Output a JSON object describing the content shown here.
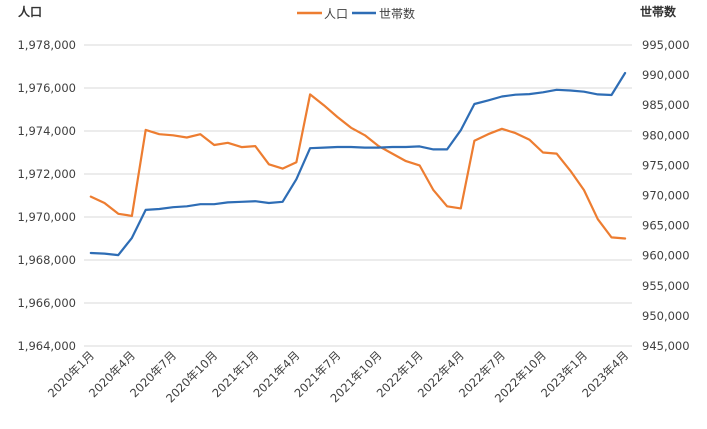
{
  "chart_data": {
    "type": "line",
    "xlabel": "",
    "y_left_label": "人口",
    "y_right_label": "世帯数",
    "x_tick_labels": [
      "2020年1月",
      "2020年4月",
      "2020年7月",
      "2020年10月",
      "2021年1月",
      "2021年4月",
      "2021年7月",
      "2021年10月",
      "2022年1月",
      "2022年4月",
      "2022年7月",
      "2022年10月",
      "2023年1月",
      "2023年4月"
    ],
    "y_left": {
      "min": 1964000,
      "max": 1978000,
      "step": 2000,
      "ticks": [
        "1,964,000",
        "1,966,000",
        "1,968,000",
        "1,970,000",
        "1,972,000",
        "1,974,000",
        "1,976,000",
        "1,978,000"
      ]
    },
    "y_right": {
      "min": 945000,
      "max": 995000,
      "step": 5000,
      "ticks": [
        "945,000",
        "950,000",
        "955,000",
        "960,000",
        "965,000",
        "970,000",
        "975,000",
        "980,000",
        "985,000",
        "990,000",
        "995,000"
      ]
    },
    "grid": true,
    "legend_position": "top",
    "series": [
      {
        "name": "人口",
        "axis": "left",
        "color": "#ed7d31",
        "values": [
          1970950,
          1970650,
          1970150,
          1970050,
          1974050,
          1973850,
          1973800,
          1973700,
          1973850,
          1973350,
          1973450,
          1973250,
          1973300,
          1972450,
          1972250,
          1972550,
          1975700,
          1975200,
          1974650,
          1974150,
          1973800,
          1973300,
          1972950,
          1972600,
          1972400,
          1971250,
          1970500,
          1970400,
          1973550,
          1973850,
          1974100,
          1973900,
          1973600,
          1973000,
          1972950,
          1972150,
          1971250,
          1969900,
          1969050,
          1969000
        ]
      },
      {
        "name": "世帯数",
        "axis": "right",
        "color": "#2e6db5",
        "values": [
          960450,
          960350,
          960100,
          962950,
          967600,
          967750,
          968050,
          968200,
          968550,
          968550,
          968850,
          968950,
          969050,
          968750,
          968950,
          972700,
          977850,
          977950,
          978050,
          978050,
          977950,
          977950,
          978050,
          978050,
          978150,
          977650,
          977650,
          980850,
          985200,
          985800,
          986450,
          986750,
          986850,
          987150,
          987550,
          987450,
          987250,
          986800,
          986700,
          990350
        ]
      }
    ]
  }
}
